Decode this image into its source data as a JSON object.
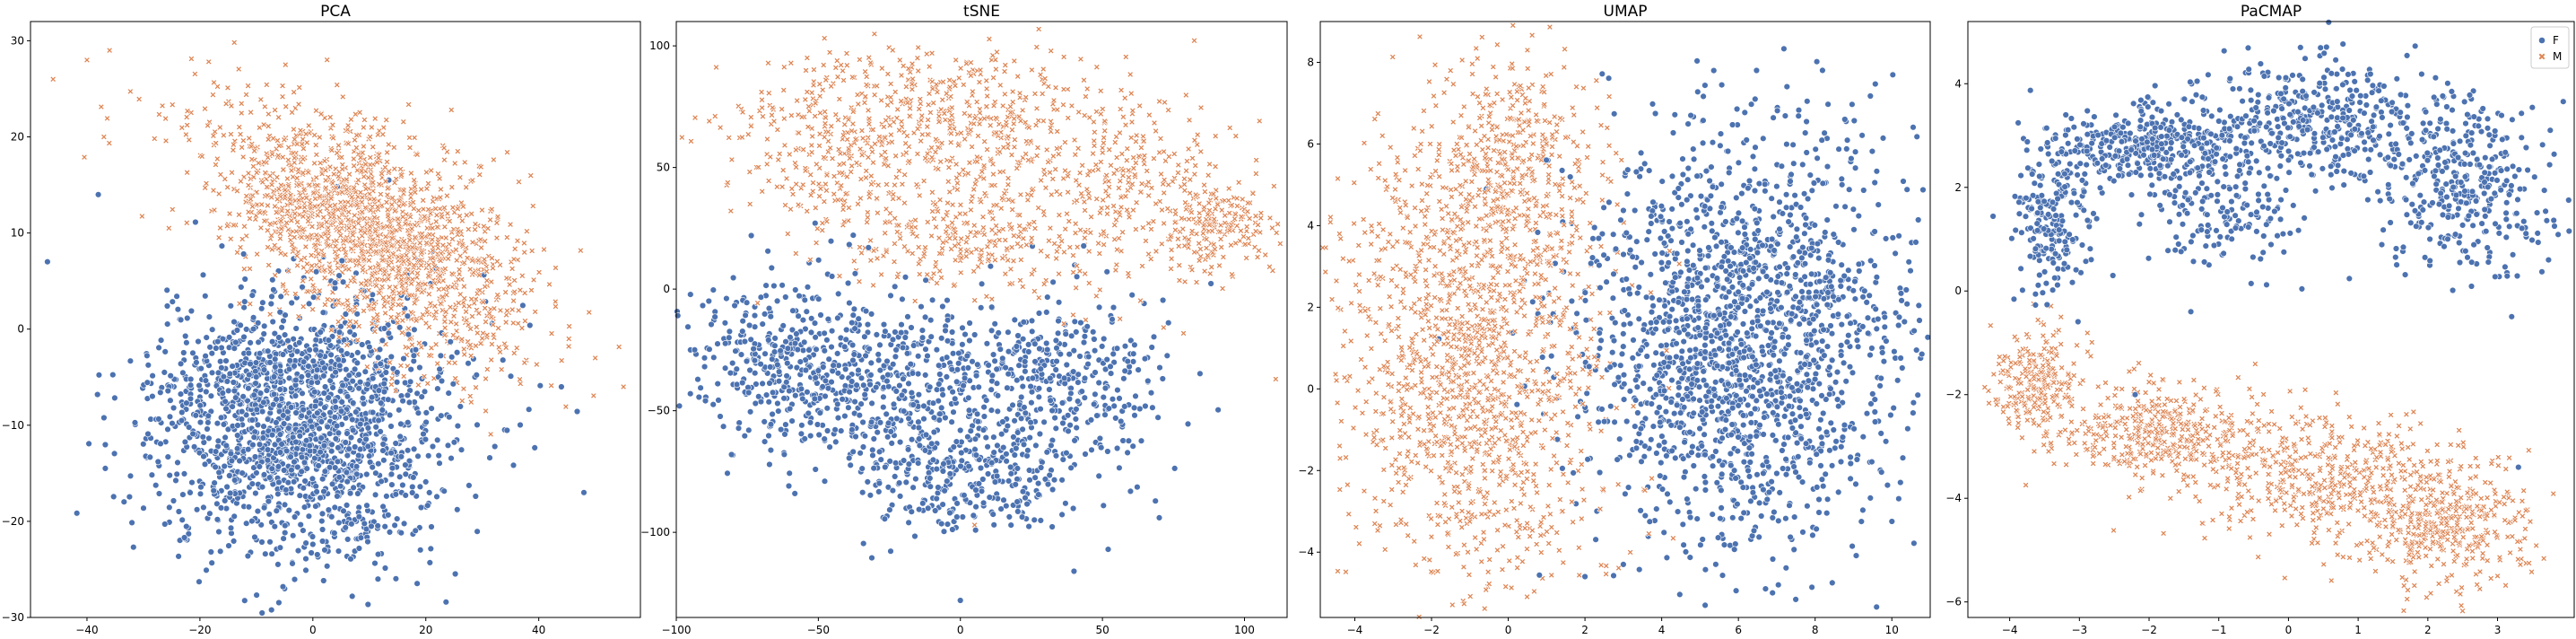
{
  "colors": {
    "F": "#4c72b0",
    "M": "#dd8452"
  },
  "legend": {
    "items": [
      {
        "label": "F",
        "marker": "circle"
      },
      {
        "label": "M",
        "marker": "x"
      }
    ],
    "placement": "top-right of PaCMAP panel"
  },
  "chart_data": [
    {
      "type": "scatter",
      "title": "PCA",
      "xlabel": "",
      "ylabel": "",
      "xlim": [
        -50,
        58
      ],
      "ylim": [
        -30,
        32
      ],
      "xticks": [
        -40,
        -20,
        0,
        20,
        40
      ],
      "yticks": [
        -30,
        -20,
        -10,
        0,
        10,
        20,
        30
      ],
      "grid": false,
      "series": [
        {
          "name": "F",
          "marker": "circle",
          "count": 1800,
          "clusters": [
            {
              "cx": -2,
              "cy": -10,
              "sx": 13,
              "sy": 6.5,
              "w": 1
            }
          ],
          "points": [
            [
              -47,
              7
            ],
            [
              -38,
              14
            ],
            [
              44,
              -6
            ],
            [
              48,
              -17
            ],
            [
              -5,
              -27
            ]
          ]
        },
        {
          "name": "M",
          "marker": "x",
          "count": 1800,
          "clusters": [
            {
              "cx": 10,
              "cy": 10,
              "sx": 14,
              "sy": 5,
              "w": 1,
              "rot": -0.3
            }
          ],
          "points": [
            [
              -40,
              28
            ],
            [
              -36,
              29
            ],
            [
              -46,
              26
            ],
            [
              55,
              -6
            ],
            [
              50,
              -3
            ],
            [
              -37,
              20
            ]
          ]
        }
      ]
    },
    {
      "type": "scatter",
      "title": "tSNE",
      "xlabel": "",
      "ylabel": "",
      "xlim": [
        -100,
        115
      ],
      "ylim": [
        -135,
        110
      ],
      "xticks": [
        -100,
        -50,
        0,
        50,
        100
      ],
      "yticks": [
        -100,
        -50,
        0,
        50,
        100
      ],
      "grid": false,
      "series": [
        {
          "name": "F",
          "marker": "circle",
          "count": 1400,
          "clusters": [
            {
              "cx": -55,
              "cy": -30,
              "sx": 22,
              "sy": 18,
              "w": 1
            },
            {
              "cx": -5,
              "cy": -45,
              "sx": 28,
              "sy": 20,
              "w": 1.3
            },
            {
              "cx": 40,
              "cy": -35,
              "sx": 18,
              "sy": 16,
              "w": 0.7
            },
            {
              "cx": 5,
              "cy": -80,
              "sx": 18,
              "sy": 10,
              "w": 0.5
            }
          ],
          "points": [
            [
              0,
              -128
            ],
            [
              40,
              -116
            ],
            [
              70,
              -94
            ],
            [
              52,
              -107
            ],
            [
              -95,
              -25
            ]
          ]
        },
        {
          "name": "M",
          "marker": "x",
          "count": 1400,
          "clusters": [
            {
              "cx": -40,
              "cy": 60,
              "sx": 20,
              "sy": 18,
              "w": 1
            },
            {
              "cx": 5,
              "cy": 70,
              "sx": 20,
              "sy": 18,
              "w": 1
            },
            {
              "cx": 55,
              "cy": 40,
              "sx": 20,
              "sy": 22,
              "w": 1
            },
            {
              "cx": 0,
              "cy": 20,
              "sx": 18,
              "sy": 10,
              "w": 0.6
            },
            {
              "cx": 90,
              "cy": 25,
              "sx": 10,
              "sy": 10,
              "w": 0.4
            }
          ],
          "points": [
            [
              111,
              -37
            ],
            [
              5,
              -97
            ],
            [
              -10,
              97
            ]
          ]
        }
      ]
    },
    {
      "type": "scatter",
      "title": "UMAP",
      "xlabel": "",
      "ylabel": "",
      "xlim": [
        -4.9,
        11
      ],
      "ylim": [
        -5.6,
        9
      ],
      "xticks": [
        -4,
        -2,
        0,
        2,
        4,
        6,
        8,
        10
      ],
      "yticks": [
        -4,
        -2,
        0,
        2,
        4,
        6,
        8
      ],
      "grid": false,
      "series": [
        {
          "name": "F",
          "marker": "circle",
          "count": 1800,
          "clusters": [
            {
              "cx": 6,
              "cy": 1.2,
              "sx": 2.1,
              "sy": 2.6,
              "w": 1
            }
          ],
          "points": [
            [
              3,
              -4.3
            ],
            [
              2,
              -4.6
            ]
          ]
        },
        {
          "name": "M",
          "marker": "x",
          "count": 1800,
          "clusters": [
            {
              "cx": -1,
              "cy": 0.5,
              "sx": 1.7,
              "sy": 2.8,
              "w": 1
            },
            {
              "cx": 0,
              "cy": 5.5,
              "sx": 1.2,
              "sy": 1.3,
              "w": 0.3
            }
          ],
          "points": [
            [
              -4.4,
              3.8
            ],
            [
              -4.2,
              0.2
            ],
            [
              0.5,
              8.3
            ]
          ]
        }
      ]
    },
    {
      "type": "scatter",
      "title": "PaCMAP",
      "xlabel": "",
      "ylabel": "",
      "xlim": [
        -4.6,
        4.1
      ],
      "ylim": [
        -6.3,
        5.2
      ],
      "xticks": [
        -4,
        -3,
        -2,
        -1,
        0,
        1,
        2,
        3
      ],
      "yticks": [
        -6,
        -4,
        -2,
        0,
        2,
        4
      ],
      "grid": false,
      "series": [
        {
          "name": "F",
          "marker": "circle",
          "count": 1500,
          "clusters": [
            {
              "cx": -2,
              "cy": 2.8,
              "sx": 0.8,
              "sy": 0.4,
              "w": 1
            },
            {
              "cx": 0.5,
              "cy": 3.3,
              "sx": 0.9,
              "sy": 0.6,
              "w": 1
            },
            {
              "cx": 2.5,
              "cy": 2.0,
              "sx": 0.6,
              "sy": 0.8,
              "w": 0.8
            },
            {
              "cx": -3.4,
              "cy": 1.2,
              "sx": 0.3,
              "sy": 0.7,
              "w": 0.4
            },
            {
              "cx": -1.0,
              "cy": 1.5,
              "sx": 0.6,
              "sy": 0.6,
              "w": 0.3
            }
          ],
          "points": [
            [
              3.3,
              -3.4
            ],
            [
              -2.2,
              -2.0
            ],
            [
              -1.4,
              -0.4
            ]
          ]
        },
        {
          "name": "M",
          "marker": "x",
          "count": 1500,
          "clusters": [
            {
              "cx": -3.6,
              "cy": -1.8,
              "sx": 0.3,
              "sy": 0.5,
              "w": 0.6
            },
            {
              "cx": -1.8,
              "cy": -2.7,
              "sx": 0.8,
              "sy": 0.5,
              "w": 1
            },
            {
              "cx": 0.5,
              "cy": -3.6,
              "sx": 0.9,
              "sy": 0.6,
              "w": 1.1
            },
            {
              "cx": 2.2,
              "cy": -4.5,
              "sx": 0.6,
              "sy": 0.6,
              "w": 1
            }
          ],
          "points": [
            [
              -4.2,
              -2.1
            ],
            [
              3.0,
              -5.5
            ]
          ]
        }
      ]
    }
  ]
}
